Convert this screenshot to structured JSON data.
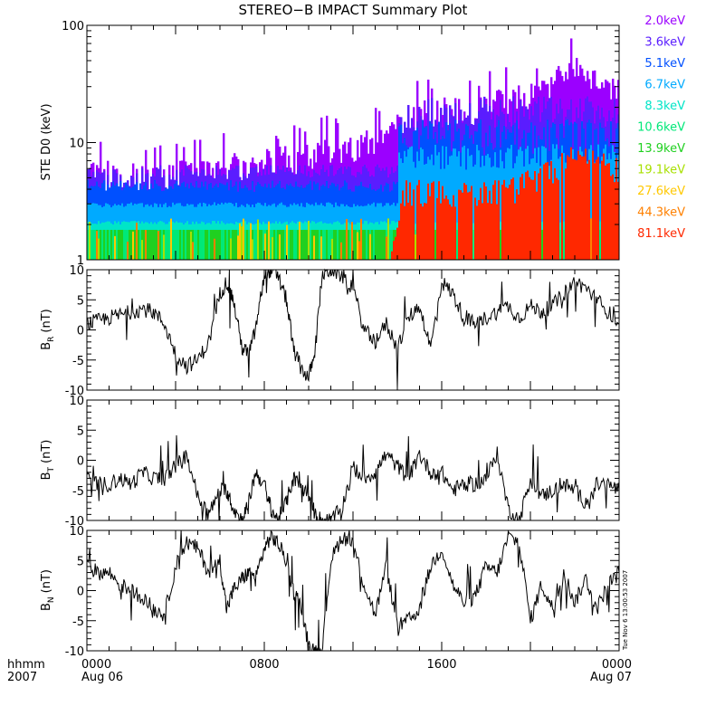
{
  "chart_data": [
    {
      "type": "heatmap",
      "title": "STEREO−B IMPACT Summary Plot",
      "ylabel": "STE D0 (keV)",
      "yscale": "log",
      "ylim": [
        1,
        100
      ],
      "yticks": [
        "1",
        "10",
        "100"
      ],
      "legend_position": "right",
      "energy_channels": [
        {
          "label": "2.0keV",
          "color": "#9b00ff"
        },
        {
          "label": "3.6keV",
          "color": "#5a1dff"
        },
        {
          "label": "5.1keV",
          "color": "#0050ff"
        },
        {
          "label": "6.7keV",
          "color": "#00aaff"
        },
        {
          "label": "8.3keV",
          "color": "#00e5c8"
        },
        {
          "label": "10.6keV",
          "color": "#00e878"
        },
        {
          "label": "13.9keV",
          "color": "#20d020"
        },
        {
          "label": "19.1keV",
          "color": "#a8e000"
        },
        {
          "label": "27.6keV",
          "color": "#ffc800"
        },
        {
          "label": "44.3keV",
          "color": "#ff8000"
        },
        {
          "label": "81.1keV",
          "color": "#ff2800"
        }
      ],
      "envelope": {
        "x_hours": [
          0,
          2,
          4,
          6,
          8,
          10,
          12,
          13.5,
          14.4,
          16,
          17.6,
          18,
          19,
          20,
          21,
          22,
          23,
          24
        ],
        "purple_peak_keV": [
          7,
          7,
          7,
          8,
          9,
          10,
          12,
          14,
          22,
          25,
          24,
          28,
          32,
          35,
          40,
          60,
          40,
          35
        ],
        "red_top_keV": [
          0,
          0,
          0,
          0,
          0,
          0,
          0,
          0,
          4,
          4,
          4,
          4,
          4,
          5,
          6,
          8,
          8,
          6
        ]
      }
    },
    {
      "type": "line",
      "ylabel": "B",
      "ylabel_sub": "R",
      "ylabel_unit": "(nT)",
      "ylim": [
        -10,
        10
      ],
      "yticks": [
        "10",
        "5",
        "0",
        "-5",
        "-10"
      ],
      "x_hours": [
        0,
        0.5,
        1,
        1.5,
        2,
        2.5,
        3,
        3.5,
        4,
        4.5,
        5,
        5.5,
        6,
        6.3,
        6.6,
        7,
        7.3,
        7.6,
        8,
        8.3,
        8.6,
        9,
        9.3,
        9.6,
        10,
        10.3,
        10.6,
        11,
        11.5,
        12,
        12.5,
        13,
        13.5,
        14,
        14.5,
        15,
        15.5,
        16,
        16.5,
        17,
        17.5,
        18,
        18.5,
        19,
        19.5,
        20,
        20.5,
        21,
        21.5,
        22,
        22.5,
        23,
        23.5,
        24
      ],
      "y": [
        1,
        1.5,
        2,
        2.5,
        3,
        3.5,
        3,
        1,
        -4,
        -6,
        -5,
        -2,
        6,
        8,
        5,
        -3,
        -4,
        0,
        9,
        10,
        9,
        5,
        -3,
        -6,
        -8,
        -3,
        9,
        10,
        9,
        7,
        0,
        -2,
        1,
        -3,
        2,
        4,
        -3,
        8,
        6,
        2,
        1,
        2,
        3,
        4,
        2,
        4,
        3,
        4,
        6,
        8,
        7,
        5,
        3,
        1
      ]
    },
    {
      "type": "line",
      "ylabel": "B",
      "ylabel_sub": "T",
      "ylabel_unit": "(nT)",
      "ylim": [
        -10,
        10
      ],
      "yticks": [
        "10",
        "5",
        "0",
        "-5",
        "-10"
      ],
      "x_hours": [
        0,
        0.5,
        1,
        1.5,
        2,
        2.5,
        3,
        3.5,
        4,
        4.5,
        5,
        5.5,
        6,
        6.3,
        6.6,
        7,
        7.3,
        7.6,
        8,
        8.3,
        8.6,
        9,
        9.3,
        9.6,
        10,
        10.3,
        10.6,
        11,
        11.5,
        12,
        12.5,
        13,
        13.5,
        14,
        14.5,
        15,
        15.5,
        16,
        16.5,
        17,
        17.5,
        18,
        18.5,
        19,
        19.5,
        20,
        20.5,
        21,
        21.5,
        22,
        22.5,
        23,
        23.5,
        24
      ],
      "y": [
        -3,
        -4,
        -4,
        -3,
        -4,
        -2,
        -3,
        -3,
        -1,
        1,
        -6,
        -9,
        -5,
        -5,
        -8,
        -10,
        -7,
        -2,
        -4,
        -8,
        -10,
        -7,
        -3,
        -4,
        -6,
        -9,
        -10,
        -10,
        -8,
        -1,
        -3,
        -2,
        1,
        -1,
        -3,
        1,
        -2,
        -2,
        -5,
        -4,
        -4,
        -3,
        1,
        -8,
        -10,
        -3,
        -6,
        -5,
        -4,
        -5,
        -7,
        -4,
        -4,
        -5
      ]
    },
    {
      "type": "line",
      "ylabel": "B",
      "ylabel_sub": "N",
      "ylabel_unit": "(nT)",
      "ylim": [
        -10,
        10
      ],
      "yticks": [
        "10",
        "5",
        "0",
        "-5",
        "-10"
      ],
      "x_hours": [
        0,
        0.5,
        1,
        1.5,
        2,
        2.5,
        3,
        3.5,
        4,
        4.5,
        5,
        5.5,
        6,
        6.3,
        6.6,
        7,
        7.3,
        7.6,
        8,
        8.3,
        8.6,
        9,
        9.3,
        9.6,
        10,
        10.3,
        10.6,
        11,
        11.5,
        12,
        12.5,
        13,
        13.5,
        14,
        14.5,
        15,
        15.5,
        16,
        16.5,
        17,
        17.5,
        18,
        18.5,
        19,
        19.5,
        20,
        20.5,
        21,
        21.5,
        22,
        22.5,
        23,
        23.5,
        24
      ],
      "y": [
        4,
        3,
        3,
        1,
        0,
        -1,
        -3,
        -4,
        4,
        8,
        7,
        3,
        5,
        -3,
        0,
        2,
        3,
        2,
        7,
        9,
        8,
        5,
        0,
        -2,
        -9,
        -10,
        -10,
        5,
        9,
        8,
        1,
        -4,
        4,
        -6,
        -5,
        -3,
        4,
        7,
        1,
        -2,
        -1,
        4,
        3,
        9,
        8,
        -5,
        1,
        -3,
        3,
        -2,
        2,
        -3,
        1,
        3
      ]
    }
  ],
  "x_axis": {
    "label_line1": "hhmm",
    "label_line2": "2007",
    "ticks": [
      {
        "hour": 0,
        "top": "0000",
        "bottom": "Aug 06"
      },
      {
        "hour": 8,
        "top": "0800",
        "bottom": ""
      },
      {
        "hour": 16,
        "top": "1600",
        "bottom": ""
      },
      {
        "hour": 24,
        "top": "0000",
        "bottom": "Aug 07"
      }
    ]
  },
  "timestamp": "Tue Nov  6 13:00:53 2007"
}
